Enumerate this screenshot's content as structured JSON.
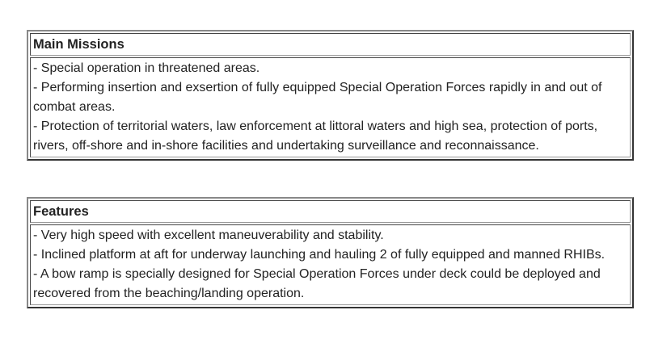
{
  "sections": [
    {
      "title": "Main Missions",
      "lines": [
        "- Special operation in threatened areas.",
        "- Performing insertion and exsertion of fully equipped Special Operation Forces rapidly in and out of combat areas.",
        "- Protection of territorial waters, law enforcement at littoral waters and high sea, protection of ports, rivers, off-shore and in-shore facilities and undertaking surveillance and reconnaissance."
      ]
    },
    {
      "title": "Features",
      "lines": [
        "- Very high speed with excellent maneuverability and stability.",
        "- Inclined platform at aft for underway launching and hauling 2 of fully equipped and manned RHIBs.",
        "- A bow ramp is specially designed for Special Operation Forces under deck could be deployed and recovered from the beaching/landing operation."
      ]
    }
  ]
}
